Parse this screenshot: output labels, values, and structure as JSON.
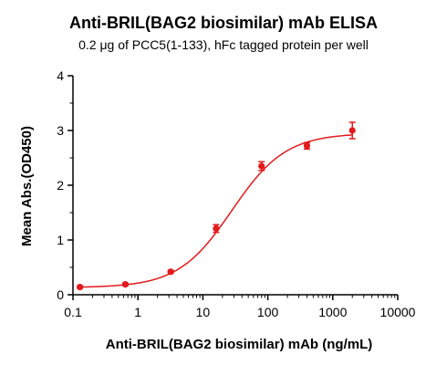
{
  "chart_data": {
    "type": "scatter",
    "title": "Anti-BRIL(BAG2 biosimilar) mAb ELISA",
    "subtitle": "0.2 μg of PCC5(1-133), hFc tagged protein per well",
    "xlabel": "Anti-BRIL(BAG2 biosimilar) mAb (ng/mL)",
    "ylabel": "Mean Abs.(OD450)",
    "x_scale": "log",
    "xlim": [
      0.1,
      10000
    ],
    "ylim": [
      0,
      4
    ],
    "x_ticks": [
      0.1,
      1,
      10,
      100,
      1000,
      10000
    ],
    "x_tick_labels": [
      "0.1",
      "1",
      "10",
      "100",
      "1000",
      "10000"
    ],
    "y_ticks": [
      0,
      1,
      2,
      3,
      4
    ],
    "y_tick_labels": [
      "0",
      "1",
      "2",
      "3",
      "4"
    ],
    "grid": false,
    "color": "#e31a1c",
    "points": [
      {
        "x": 0.128,
        "y": 0.14,
        "err": 0.02
      },
      {
        "x": 0.64,
        "y": 0.19,
        "err": 0.02
      },
      {
        "x": 3.2,
        "y": 0.42,
        "err": 0.02
      },
      {
        "x": 16,
        "y": 1.21,
        "err": 0.07
      },
      {
        "x": 80,
        "y": 2.35,
        "err": 0.08
      },
      {
        "x": 400,
        "y": 2.72,
        "err": 0.06
      },
      {
        "x": 2000,
        "y": 3.0,
        "err": 0.15
      }
    ],
    "fit_curve": {
      "bottom": 0.13,
      "top": 2.95,
      "ec50": 28,
      "hill": 1.05
    }
  }
}
